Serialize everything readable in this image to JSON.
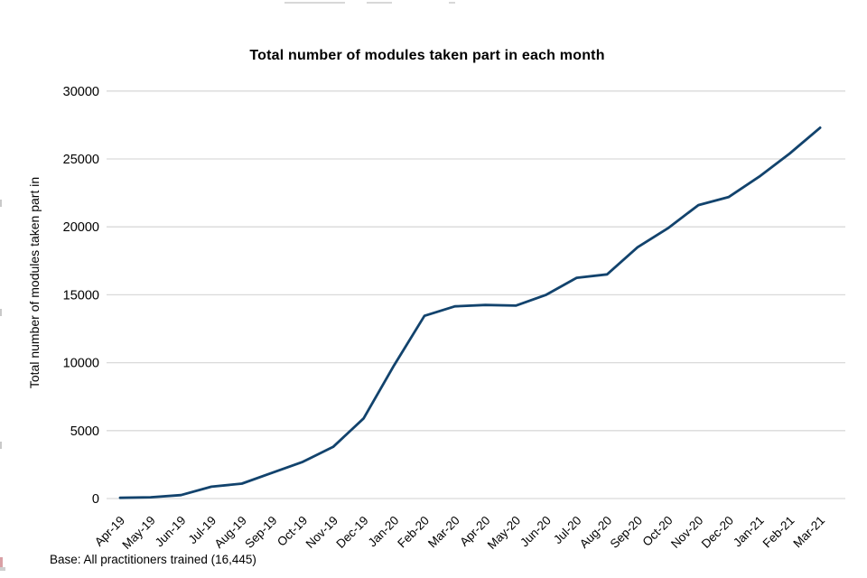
{
  "page": {
    "footer": "Base: All practitioners trained (16,445)"
  },
  "chart_data": {
    "type": "line",
    "title": "Total number of modules taken part in each month",
    "xlabel": "",
    "ylabel": "Total number of modules taken part in",
    "categories": [
      "Apr-19",
      "May-19",
      "Jun-19",
      "Jul-19",
      "Aug-19",
      "Sep-19",
      "Oct-19",
      "Nov-19",
      "Dec-19",
      "Jan-20",
      "Feb-20",
      "Mar-20",
      "Apr-20",
      "May-20",
      "Jun-20",
      "Jul-20",
      "Aug-20",
      "Sep-20",
      "Oct-20",
      "Nov-20",
      "Dec-20",
      "Jan-21",
      "Feb-21",
      "Mar-21"
    ],
    "series": [
      {
        "name": "Total number of modules taken part in",
        "values": [
          50,
          90,
          250,
          870,
          1100,
          1900,
          2700,
          3800,
          5900,
          9800,
          13450,
          14150,
          14250,
          14200,
          15000,
          16250,
          16500,
          18500,
          19900,
          21600,
          22200,
          23700,
          25400,
          27300
        ]
      }
    ],
    "ylim": [
      0,
      30000
    ],
    "ytick_step": 5000,
    "yticks": [
      "0",
      "5000",
      "10000",
      "15000",
      "20000",
      "25000",
      "30000"
    ],
    "grid": "horizontal",
    "legend": "none",
    "line_color": "#12436d",
    "gridline_color": "#d9d9d9",
    "text_color": "#000000"
  }
}
